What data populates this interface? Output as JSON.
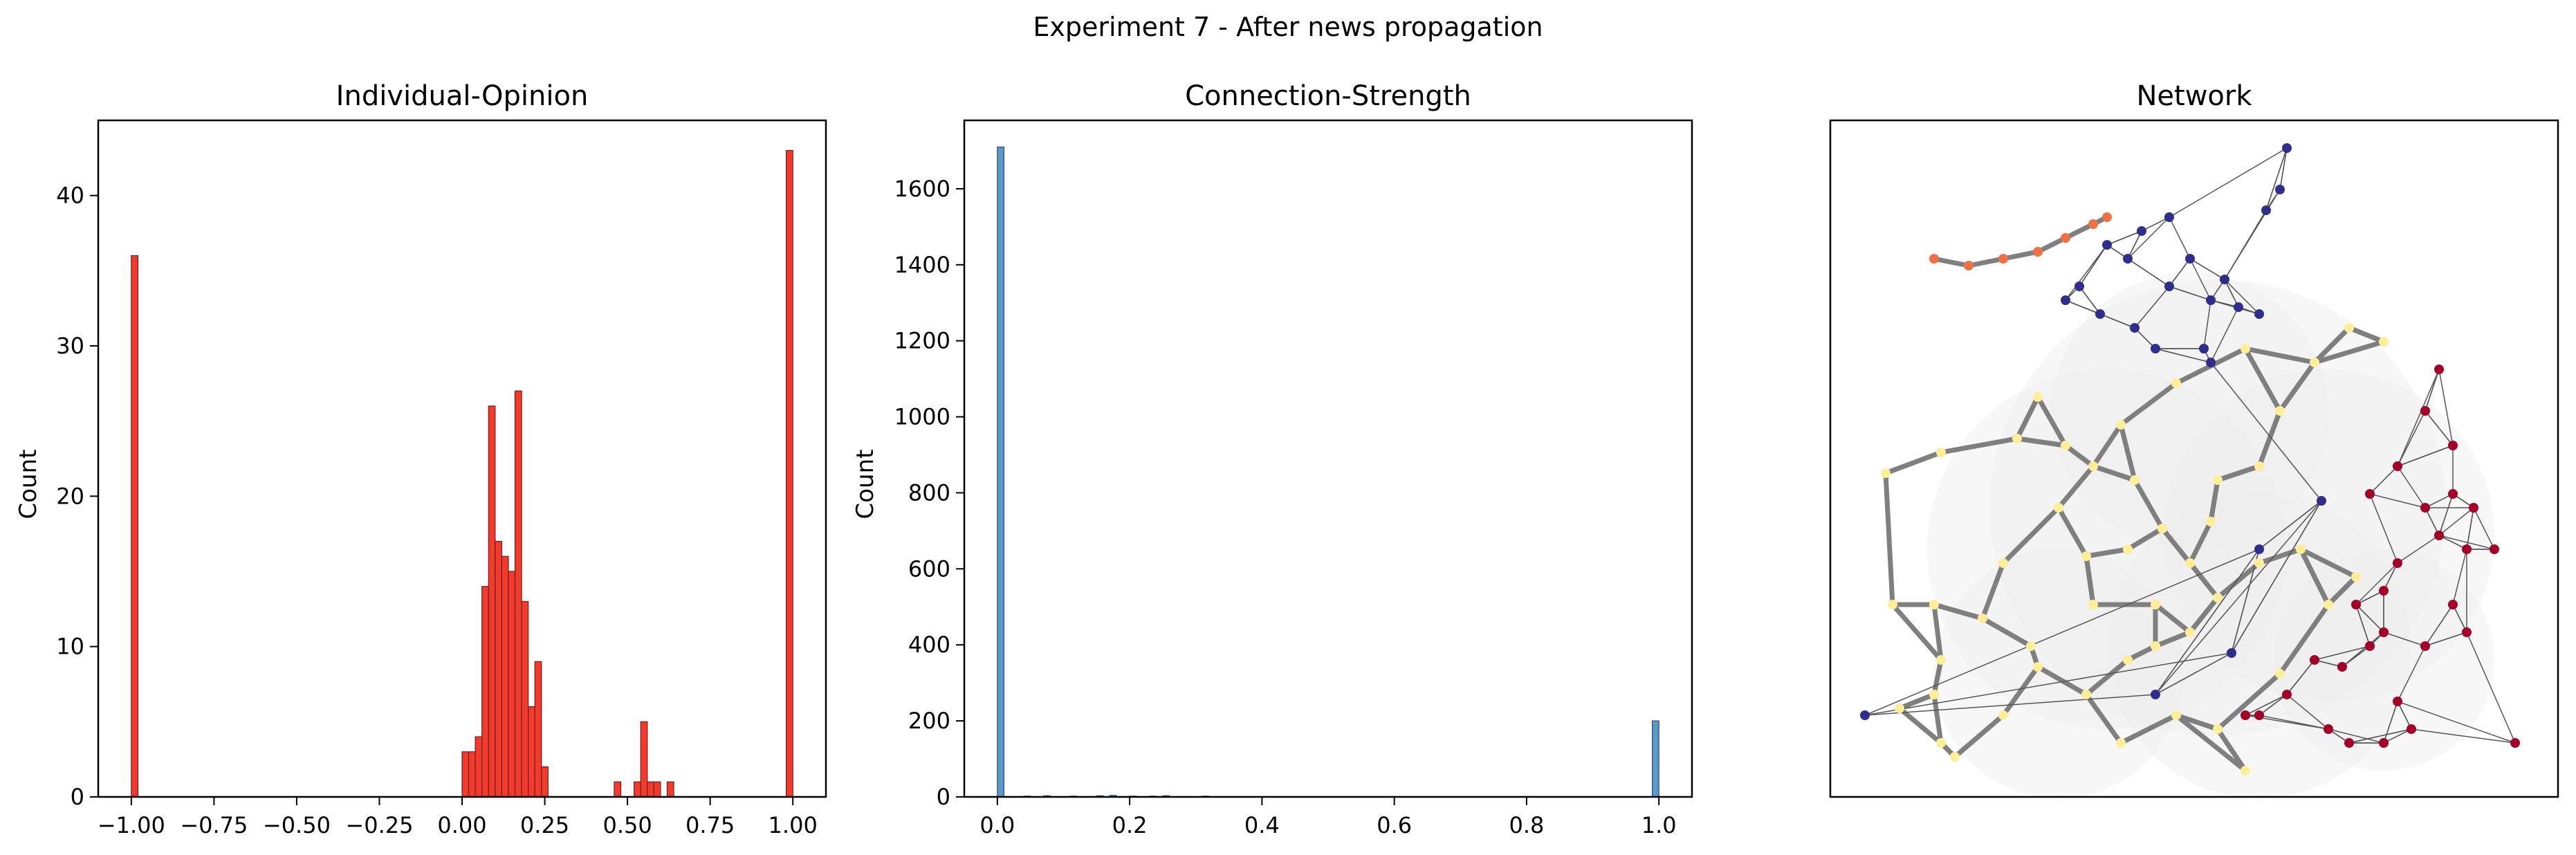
{
  "figure": {
    "suptitle": "Experiment 7 - After news propagation"
  },
  "colors": {
    "opinion_bar": "#f03c2e",
    "opinion_bar_edge": "#7a1a14",
    "strength_bar": "#5b9ac8",
    "strength_bar_edge": "#2a4e6e",
    "net_edge_strong": "#7f7f7f",
    "net_edge_weak": "#555555",
    "net_cloud": "#eeeeee",
    "node_yellow": "#ffee99",
    "node_yellow2": "#fff2a6",
    "node_navy": "#2e2e8c",
    "node_red": "#a50026",
    "node_orange": "#f07045"
  },
  "chart_data": [
    {
      "type": "bar",
      "title": "Individual-Opinion",
      "xlabel": "",
      "ylabel": "Count",
      "xlim": [
        -1.1,
        1.1
      ],
      "ylim": [
        0,
        45
      ],
      "xticks": [
        -1.0,
        -0.75,
        -0.5,
        -0.25,
        0.0,
        0.25,
        0.5,
        0.75,
        1.0
      ],
      "xtick_labels": [
        "−1.00",
        "−0.75",
        "−0.50",
        "−0.25",
        "0.00",
        "0.25",
        "0.50",
        "0.75",
        "1.00"
      ],
      "yticks": [
        0,
        10,
        20,
        30,
        40
      ],
      "ytick_labels": [
        "0",
        "10",
        "20",
        "30",
        "40"
      ],
      "bin_width": 0.02,
      "bins": [
        {
          "x": -1.0,
          "count": 36
        },
        {
          "x": 0.0,
          "count": 3
        },
        {
          "x": 0.02,
          "count": 3
        },
        {
          "x": 0.04,
          "count": 4
        },
        {
          "x": 0.06,
          "count": 14
        },
        {
          "x": 0.08,
          "count": 26
        },
        {
          "x": 0.1,
          "count": 17
        },
        {
          "x": 0.12,
          "count": 16
        },
        {
          "x": 0.14,
          "count": 15
        },
        {
          "x": 0.16,
          "count": 27
        },
        {
          "x": 0.18,
          "count": 13
        },
        {
          "x": 0.2,
          "count": 6
        },
        {
          "x": 0.22,
          "count": 9
        },
        {
          "x": 0.24,
          "count": 2
        },
        {
          "x": 0.46,
          "count": 1
        },
        {
          "x": 0.52,
          "count": 1
        },
        {
          "x": 0.54,
          "count": 5
        },
        {
          "x": 0.56,
          "count": 1
        },
        {
          "x": 0.58,
          "count": 1
        },
        {
          "x": 0.62,
          "count": 1
        },
        {
          "x": 0.98,
          "count": 43
        }
      ]
    },
    {
      "type": "bar",
      "title": "Connection-Strength",
      "xlabel": "",
      "ylabel": "Count",
      "xlim": [
        -0.05,
        1.05
      ],
      "ylim": [
        0,
        1780
      ],
      "xticks": [
        0.0,
        0.2,
        0.4,
        0.6,
        0.8,
        1.0
      ],
      "xtick_labels": [
        "0.0",
        "0.2",
        "0.4",
        "0.6",
        "0.8",
        "1.0"
      ],
      "yticks": [
        0,
        200,
        400,
        600,
        800,
        1000,
        1200,
        1400,
        1600
      ],
      "ytick_labels": [
        "0",
        "200",
        "400",
        "600",
        "800",
        "1000",
        "1200",
        "1400",
        "1600"
      ],
      "bin_width": 0.01,
      "bins": [
        {
          "x": 0.0,
          "count": 1710
        },
        {
          "x": 0.04,
          "count": 2
        },
        {
          "x": 0.07,
          "count": 3
        },
        {
          "x": 0.11,
          "count": 2
        },
        {
          "x": 0.15,
          "count": 3
        },
        {
          "x": 0.17,
          "count": 4
        },
        {
          "x": 0.2,
          "count": 2
        },
        {
          "x": 0.23,
          "count": 2
        },
        {
          "x": 0.25,
          "count": 3
        },
        {
          "x": 0.31,
          "count": 2
        },
        {
          "x": 0.99,
          "count": 200
        }
      ]
    },
    {
      "type": "network",
      "title": "Network",
      "ylabel": "",
      "clusters": [
        {
          "group": "yellow",
          "description": "dense central cluster with thick gray edges"
        },
        {
          "group": "navy",
          "description": "upper-right cluster with thin edges"
        },
        {
          "group": "red",
          "description": "lower-right cluster with thin edges"
        },
        {
          "group": "orange",
          "description": "small chain at upper-left"
        }
      ]
    }
  ]
}
